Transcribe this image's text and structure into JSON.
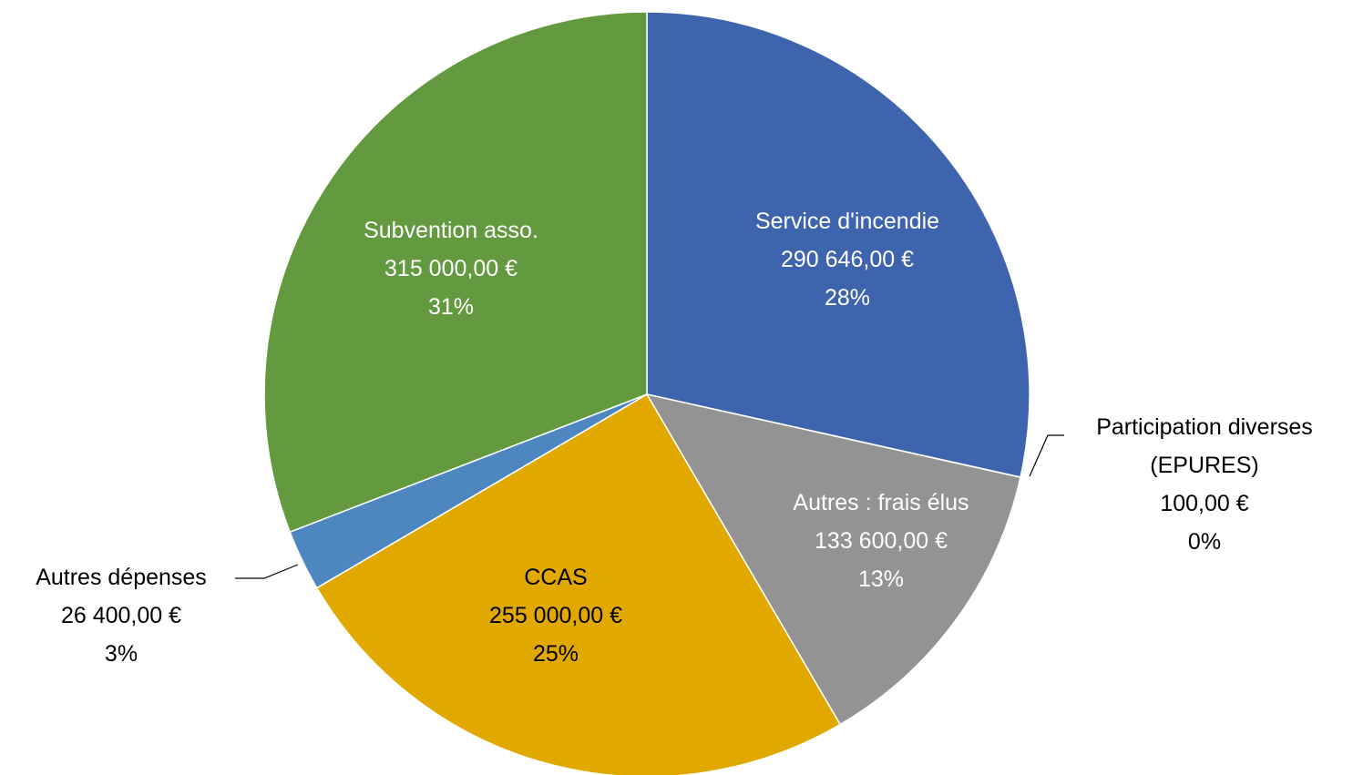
{
  "chart_data": {
    "type": "pie",
    "categories": [
      "Service d'incendie",
      "Participation diverses (EPURES)",
      "Autres : frais élus",
      "CCAS",
      "Autres dépenses",
      "Subvention asso."
    ],
    "values": [
      290646,
      100,
      133600,
      255000,
      26400,
      315000
    ],
    "value_labels": [
      "290 646,00 €",
      "100,00 €",
      "133 600,00 €",
      "255 000,00 €",
      "26 400,00 €",
      "315 000,00 €"
    ],
    "percent_labels": [
      "28%",
      "0%",
      "13%",
      "25%",
      "3%",
      "31%"
    ],
    "colors": [
      "#3e64ae",
      "#ed7d31",
      "#939393",
      "#e1a800",
      "#4e87bf",
      "#639a3f"
    ]
  }
}
